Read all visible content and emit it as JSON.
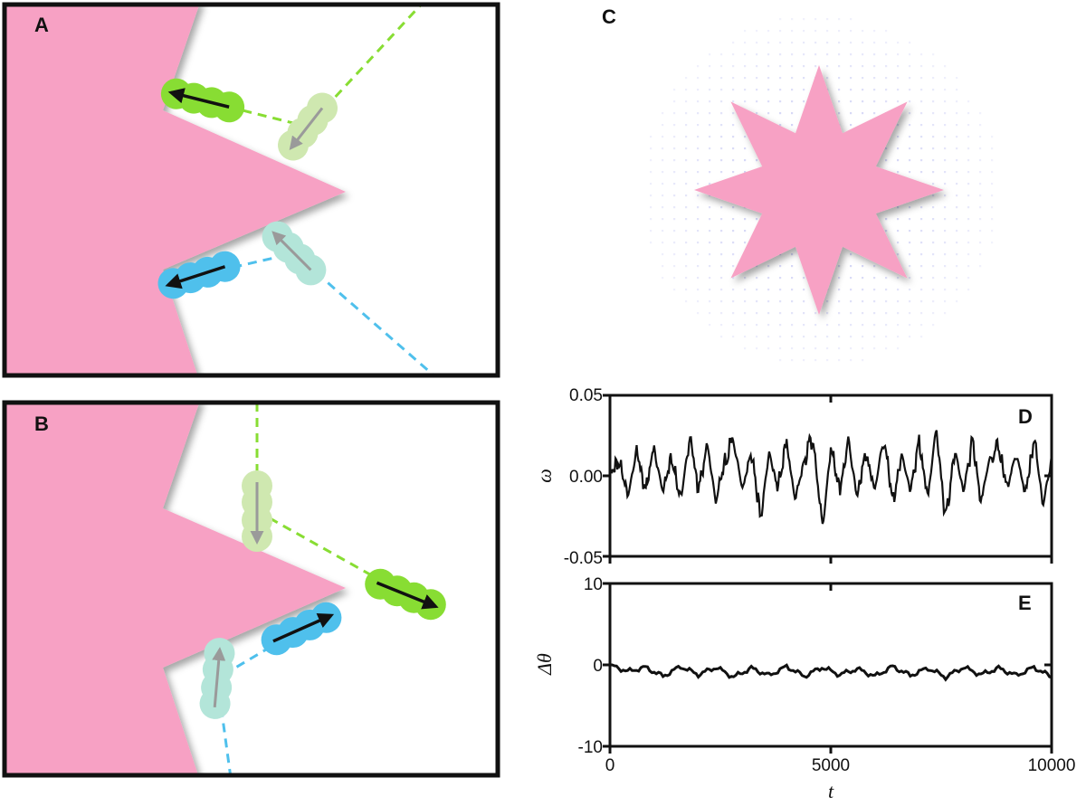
{
  "panels": {
    "a": {
      "label": "A"
    },
    "b": {
      "label": "B"
    },
    "c": {
      "label": "C"
    },
    "d": {
      "label": "D"
    },
    "e": {
      "label": "E"
    }
  },
  "colors": {
    "pink": "#f7a1c4",
    "green": "#88dd33",
    "green_faded": "#cfe8b0",
    "blue": "#4fc0ec",
    "blue_faded": "#b3e5d9",
    "dot": "#b9bcf0"
  },
  "chart_data": [
    {
      "panel": "D",
      "type": "line",
      "xlabel": "",
      "ylabel": "ω",
      "xlim": [
        0,
        10000
      ],
      "ylim": [
        -0.05,
        0.05
      ],
      "yticks": [
        "0.05",
        "0.00",
        "-0.05"
      ],
      "series_style": "noisy oscillation around 0, amplitude ≈ 0.02, extremes ≈ +0.036 and -0.040",
      "x": [
        0,
        200,
        400,
        600,
        800,
        1000,
        1200,
        1400,
        1600,
        1800,
        2000,
        2200,
        2400,
        2600,
        2800,
        3000,
        3200,
        3400,
        3600,
        3800,
        4000,
        4200,
        4400,
        4600,
        4800,
        5000,
        5200,
        5400,
        5600,
        5800,
        6000,
        6200,
        6400,
        6600,
        6800,
        7000,
        7200,
        7400,
        7600,
        7800,
        8000,
        8200,
        8400,
        8600,
        8800,
        9000,
        9200,
        9400,
        9600,
        9800,
        10000
      ],
      "y": [
        0.0,
        0.012,
        -0.015,
        0.018,
        -0.01,
        0.02,
        -0.012,
        0.015,
        -0.02,
        0.03,
        -0.01,
        0.022,
        -0.018,
        0.01,
        0.028,
        -0.012,
        0.02,
        -0.032,
        0.016,
        -0.008,
        0.024,
        -0.018,
        0.012,
        0.03,
        -0.04,
        0.02,
        -0.01,
        0.025,
        -0.015,
        0.018,
        -0.012,
        0.03,
        -0.02,
        0.015,
        -0.01,
        0.024,
        -0.015,
        0.036,
        -0.036,
        0.02,
        -0.012,
        0.026,
        -0.018,
        0.012,
        0.022,
        -0.01,
        0.018,
        -0.015,
        0.028,
        -0.02,
        0.01
      ]
    },
    {
      "panel": "E",
      "type": "line",
      "xlabel": "t",
      "ylabel": "Δθ",
      "xlim": [
        0,
        10000
      ],
      "ylim": [
        -10,
        10
      ],
      "xticks": [
        "0",
        "5000",
        "10000"
      ],
      "yticks": [
        "10",
        "0",
        "-10"
      ],
      "x": [
        0,
        400,
        800,
        1200,
        1600,
        2000,
        2400,
        2800,
        3200,
        3600,
        4000,
        4400,
        4800,
        5200,
        5600,
        6000,
        6400,
        6800,
        7200,
        7600,
        8000,
        8400,
        8800,
        9200,
        9600,
        10000
      ],
      "y": [
        0.0,
        -0.8,
        -0.3,
        -1.4,
        -0.2,
        -1.2,
        -0.3,
        -1.5,
        -0.4,
        -1.3,
        -0.2,
        -1.4,
        -0.3,
        -1.2,
        -0.5,
        -1.4,
        -0.2,
        -1.3,
        -0.4,
        -1.5,
        -0.3,
        -1.2,
        -0.4,
        -1.3,
        -0.3,
        -1.5
      ]
    }
  ]
}
